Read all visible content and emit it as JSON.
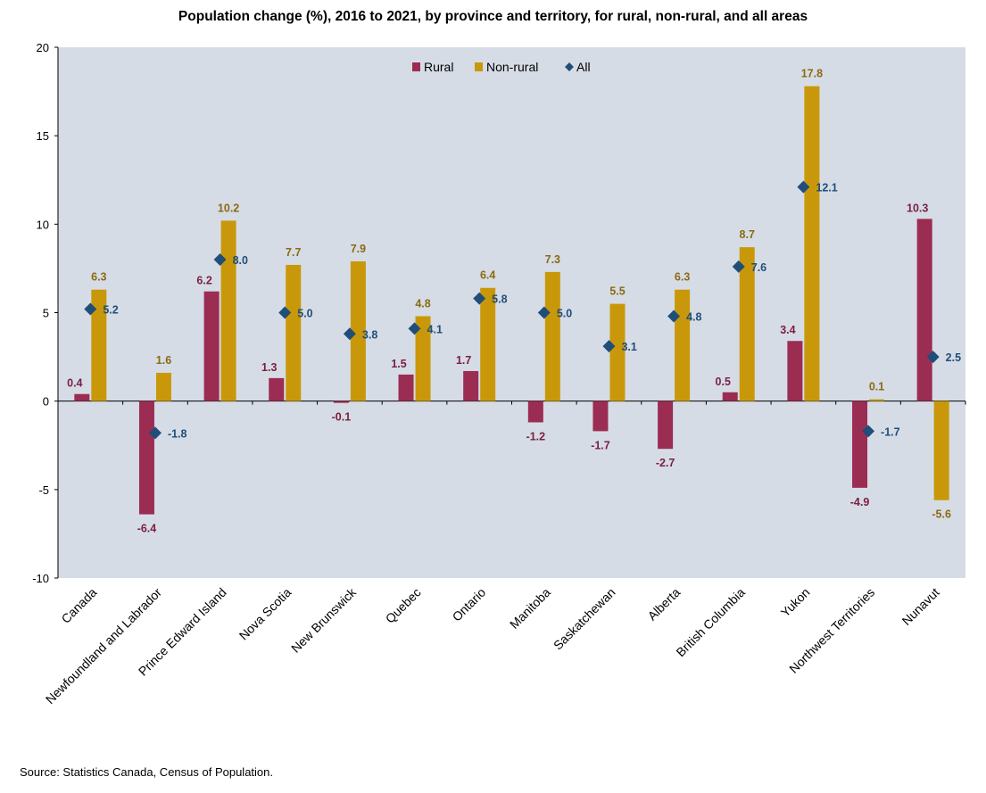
{
  "chart_data": {
    "type": "bar",
    "title": "Population change (%), 2016 to 2021, by province and territory, for rural, non-rural, and all areas",
    "xlabel": "",
    "ylabel": "",
    "ylim": [
      -10,
      20
    ],
    "yticks": [
      -10,
      -5,
      0,
      5,
      10,
      15,
      20
    ],
    "legend_position": "top-center",
    "categories": [
      "Canada",
      "Newfoundland and Labrador",
      "Prince Edward Island",
      "Nova Scotia",
      "New Brunswick",
      "Quebec",
      "Ontario",
      "Manitoba",
      "Saskatchewan",
      "Alberta",
      "British Columbia",
      "Yukon",
      "Northwest Territories",
      "Nunavut"
    ],
    "series": [
      {
        "name": "Rural",
        "kind": "bar",
        "color": "#9b2c52",
        "label_color": "#7a1f40",
        "values": [
          0.4,
          -6.4,
          6.2,
          1.3,
          -0.1,
          1.5,
          1.7,
          -1.2,
          -1.7,
          -2.7,
          0.5,
          3.4,
          -4.9,
          10.3
        ],
        "labels": [
          "0.4",
          "-6.4",
          "6.2",
          "1.3",
          "-0.1",
          "1.5",
          "1.7",
          "-1.2",
          "-1.7",
          "-2.7",
          "0.5",
          "3.4",
          "-4.9",
          "10.3"
        ]
      },
      {
        "name": "Non-rural",
        "kind": "bar",
        "color": "#c9980a",
        "label_color": "#8a6a10",
        "values": [
          6.3,
          1.6,
          10.2,
          7.7,
          7.9,
          4.8,
          6.4,
          7.3,
          5.5,
          6.3,
          8.7,
          17.8,
          0.1,
          -5.6
        ],
        "labels": [
          "6.3",
          "1.6",
          "10.2",
          "7.7",
          "7.9",
          "4.8",
          "6.4",
          "7.3",
          "5.5",
          "6.3",
          "8.7",
          "17.8",
          "0.1",
          "-5.6"
        ]
      },
      {
        "name": "All",
        "kind": "marker",
        "color": "#1f4e79",
        "label_color": "#1f4e79",
        "values": [
          5.2,
          -1.8,
          8.0,
          5.0,
          3.8,
          4.1,
          5.8,
          5.0,
          3.1,
          4.8,
          7.6,
          12.1,
          -1.7,
          2.5
        ],
        "labels": [
          "5.2",
          "-1.8",
          "8.0",
          "5.0",
          "3.8",
          "4.1",
          "5.8",
          "5.0",
          "3.1",
          "4.8",
          "7.6",
          "12.1",
          "-1.7",
          "2.5"
        ]
      }
    ],
    "colors": {
      "plot_background": "#d6dce6"
    }
  },
  "source_note": "Source: Statistics Canada, Census of Population."
}
